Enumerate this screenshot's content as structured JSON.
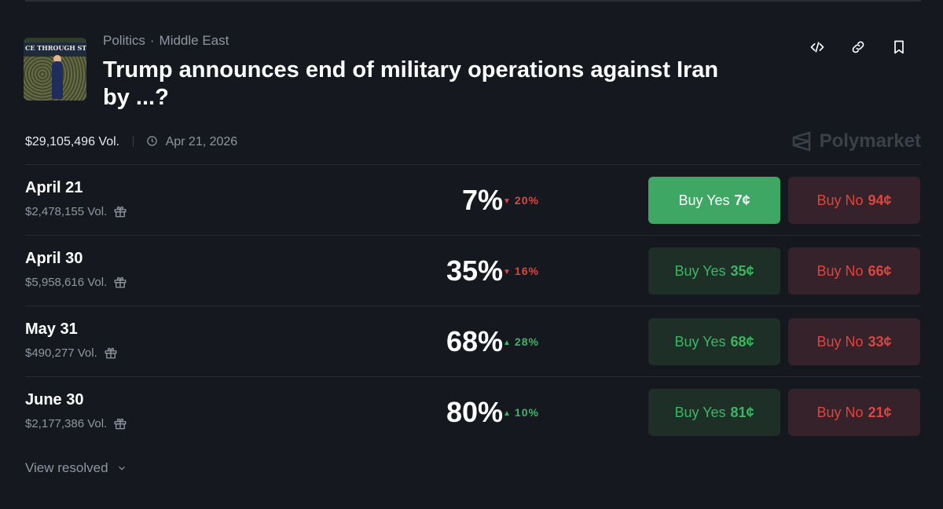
{
  "market": {
    "category": "Politics",
    "subcategory": "Middle East",
    "title": "Trump announces end of military operations against Iran by ...?",
    "thumbnail_text": "CE THROUGH STRENG",
    "volume": "$29,105,496 Vol.",
    "date": "Apr 21, 2026",
    "brand": "Polymarket"
  },
  "icons": {
    "embed": "code-icon",
    "link": "link-icon",
    "bookmark": "bookmark-icon",
    "clock": "clock-icon",
    "gift": "gift-icon",
    "brand": "polymarket-logo-icon",
    "chevron": "chevron-down-icon"
  },
  "colors": {
    "background": "#15191f",
    "green": "#3fb465",
    "green_button_active": "#3fa764",
    "red": "#e0443e",
    "muted": "#8f96a2"
  },
  "rows": [
    {
      "label": "April 21",
      "volume": "$2,478,155 Vol.",
      "percent": "7%",
      "change": "20%",
      "direction": "down",
      "yes_label": "Buy Yes",
      "yes_price": "7¢",
      "no_label": "Buy No",
      "no_price": "94¢",
      "yes_active": true
    },
    {
      "label": "April 30",
      "volume": "$5,958,616 Vol.",
      "percent": "35%",
      "change": "16%",
      "direction": "down",
      "yes_label": "Buy Yes",
      "yes_price": "35¢",
      "no_label": "Buy No",
      "no_price": "66¢",
      "yes_active": false
    },
    {
      "label": "May 31",
      "volume": "$490,277 Vol.",
      "percent": "68%",
      "change": "28%",
      "direction": "up",
      "yes_label": "Buy Yes",
      "yes_price": "68¢",
      "no_label": "Buy No",
      "no_price": "33¢",
      "yes_active": false
    },
    {
      "label": "June 30",
      "volume": "$2,177,386 Vol.",
      "percent": "80%",
      "change": "10%",
      "direction": "up",
      "yes_label": "Buy Yes",
      "yes_price": "81¢",
      "no_label": "Buy No",
      "no_price": "21¢",
      "yes_active": false
    }
  ],
  "footer": {
    "view_resolved": "View resolved"
  },
  "separator": "·",
  "arrows": {
    "down": "▼",
    "up": "▲"
  }
}
